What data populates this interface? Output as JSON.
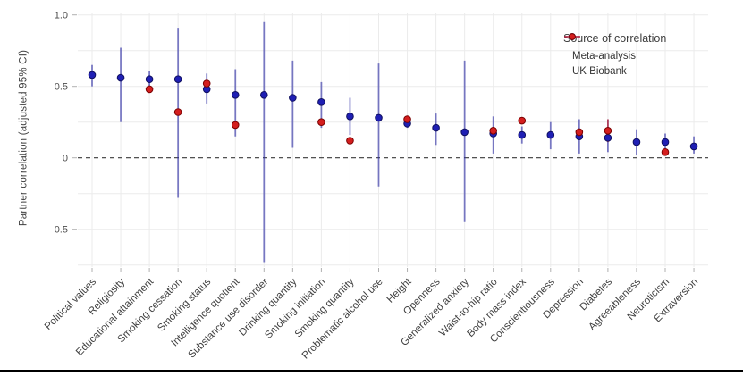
{
  "figure": {
    "y_axis_title": "Partner correlation (adjusted 95% CI)",
    "legend": {
      "title": "Source of correlation",
      "items": [
        {
          "label": "Meta-analysis",
          "color": "#1f1fb4"
        },
        {
          "label": "UK Biobank",
          "color": "#d41e1e"
        }
      ]
    },
    "colors": {
      "meta_point": "#1f1fb4",
      "meta_point_stroke": "#101060",
      "meta_bar": "rgba(45,45,165,0.62)",
      "ukb_point": "#d41e1e",
      "ukb_point_stroke": "#7a0000",
      "ukb_bar": "rgba(212,30,30,0.62)",
      "gridline": "#ebebeb",
      "tick": "#b0b0b0",
      "axis_text": "#4d4d4d",
      "zero_line": "#3a3a3a"
    }
  },
  "chart_data": {
    "type": "scatter",
    "subtype": "pointrange-with-95ci",
    "title": "",
    "xlabel": "",
    "ylabel": "Partner correlation (adjusted 95% CI)",
    "ylim": [
      -0.78,
      1.0
    ],
    "ytick_values": [
      1.0,
      0.5,
      0,
      -0.5
    ],
    "ytick_labels": [
      "1.0",
      "0.5",
      "0",
      "-0.5"
    ],
    "gridline_values": [
      1.0,
      0.75,
      0.5,
      0.25,
      -0.25,
      -0.5,
      -0.75
    ],
    "zero_reference_line": {
      "value": 0,
      "style": "dashed"
    },
    "grid": true,
    "legend_position": "top-right-inside",
    "legend_title": "Source of correlation",
    "categories": [
      "Political values",
      "Religiosity",
      "Educational attainment",
      "Smoking cessation",
      "Smoking status",
      "Intelligence quotient",
      "Substance use disorder",
      "Drinking quantity",
      "Smoking initiation",
      "Smoking quantity",
      "Problematic alcohol use",
      "Height",
      "Openness",
      "Generalized anxiety",
      "Waist-to-hip ratio",
      "Body mass index",
      "Conscientiousness",
      "Depression",
      "Diabetes",
      "Agreeableness",
      "Neuroticism",
      "Extraversion"
    ],
    "series": [
      {
        "name": "Meta-analysis",
        "color": "#1f1fb4",
        "points": [
          {
            "y": 0.58,
            "lo": 0.5,
            "hi": 0.65
          },
          {
            "y": 0.56,
            "lo": 0.25,
            "hi": 0.77
          },
          {
            "y": 0.55,
            "lo": 0.46,
            "hi": 0.61
          },
          {
            "y": 0.55,
            "lo": -0.28,
            "hi": 0.91
          },
          {
            "y": 0.48,
            "lo": 0.38,
            "hi": 0.59
          },
          {
            "y": 0.44,
            "lo": 0.15,
            "hi": 0.62
          },
          {
            "y": 0.44,
            "lo": -0.73,
            "hi": 0.95
          },
          {
            "y": 0.42,
            "lo": 0.07,
            "hi": 0.68
          },
          {
            "y": 0.39,
            "lo": 0.21,
            "hi": 0.53
          },
          {
            "y": 0.29,
            "lo": 0.16,
            "hi": 0.42
          },
          {
            "y": 0.28,
            "lo": -0.2,
            "hi": 0.66
          },
          {
            "y": 0.24,
            "lo": 0.21,
            "hi": 0.29
          },
          {
            "y": 0.21,
            "lo": 0.09,
            "hi": 0.31
          },
          {
            "y": 0.18,
            "lo": -0.45,
            "hi": 0.68
          },
          {
            "y": 0.17,
            "lo": 0.03,
            "hi": 0.29
          },
          {
            "y": 0.16,
            "lo": 0.1,
            "hi": 0.22
          },
          {
            "y": 0.16,
            "lo": 0.06,
            "hi": 0.25
          },
          {
            "y": 0.15,
            "lo": 0.03,
            "hi": 0.27
          },
          {
            "y": 0.14,
            "lo": 0.04,
            "hi": 0.27
          },
          {
            "y": 0.11,
            "lo": 0.02,
            "hi": 0.2
          },
          {
            "y": 0.11,
            "lo": 0.05,
            "hi": 0.17
          },
          {
            "y": 0.08,
            "lo": 0.03,
            "hi": 0.15
          }
        ]
      },
      {
        "name": "UK Biobank",
        "color": "#d41e1e",
        "points": [
          null,
          null,
          {
            "y": 0.48
          },
          {
            "y": 0.32
          },
          {
            "y": 0.52
          },
          {
            "y": 0.23
          },
          null,
          null,
          {
            "y": 0.25
          },
          {
            "y": 0.12
          },
          null,
          {
            "y": 0.27
          },
          null,
          null,
          {
            "y": 0.19
          },
          {
            "y": 0.26
          },
          null,
          {
            "y": 0.18
          },
          {
            "y": 0.19,
            "lo": 0.11,
            "hi": 0.27
          },
          null,
          {
            "y": 0.04
          },
          null
        ]
      }
    ]
  }
}
